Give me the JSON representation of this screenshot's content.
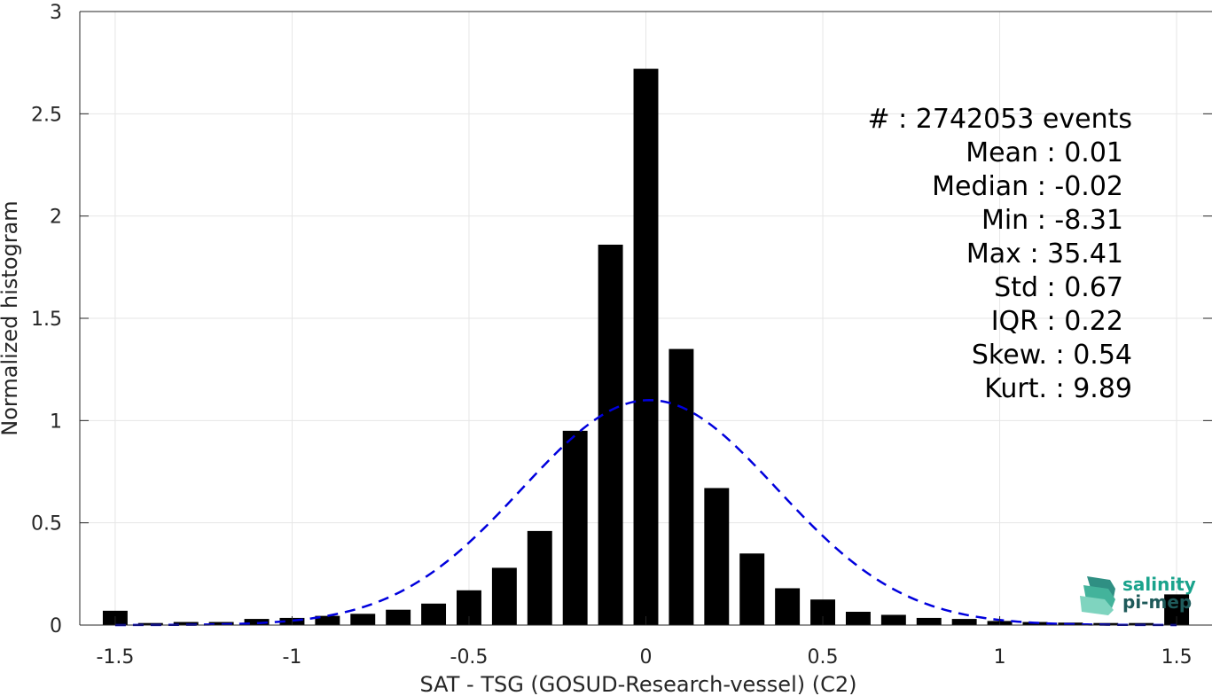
{
  "chart_data": {
    "type": "bar",
    "xlabel": "SAT - TSG (GOSUD-Research-vessel) (C2)",
    "ylabel": "Normalized histogram",
    "xlim": [
      -1.6,
      1.6
    ],
    "ylim": [
      0,
      3
    ],
    "grid": true,
    "bin_width": 0.1,
    "x_ticks": [
      -1.5,
      -1,
      -0.5,
      0,
      0.5,
      1,
      1.5
    ],
    "x_tick_labels": [
      "-1.5",
      "-1",
      "-0.5",
      "0",
      "0.5",
      "1",
      "1.5"
    ],
    "y_ticks": [
      0,
      0.5,
      1,
      1.5,
      2,
      2.5,
      3
    ],
    "y_tick_labels": [
      "0",
      "0.5",
      "1",
      "1.5",
      "2",
      "2.5",
      "3"
    ],
    "bins": [
      -1.5,
      -1.4,
      -1.3,
      -1.2,
      -1.1,
      -1.0,
      -0.9,
      -0.8,
      -0.7,
      -0.6,
      -0.5,
      -0.4,
      -0.3,
      -0.2,
      -0.1,
      0.0,
      0.1,
      0.2,
      0.3,
      0.4,
      0.5,
      0.6,
      0.7,
      0.8,
      0.9,
      1.0,
      1.1,
      1.2,
      1.3,
      1.4,
      1.5
    ],
    "values": [
      0.07,
      0.01,
      0.015,
      0.015,
      0.03,
      0.035,
      0.045,
      0.055,
      0.075,
      0.105,
      0.17,
      0.28,
      0.46,
      0.95,
      1.86,
      2.72,
      1.35,
      0.67,
      0.35,
      0.18,
      0.125,
      0.065,
      0.05,
      0.035,
      0.03,
      0.02,
      0.015,
      0.012,
      0.01,
      0.01,
      0.15
    ],
    "bar_color": "#000000",
    "fit_curve": {
      "style": "dashed",
      "color": "#0000dd",
      "mean": 0.01,
      "std": 0.36,
      "peak": 1.1
    },
    "stats": {
      "events_label": "#  : 2742053 events",
      "lines": [
        "Mean : 0.01",
        "Median : -0.02",
        "Min : -8.31",
        "Max : 35.41",
        "Std : 0.67",
        "IQR : 0.22",
        "Skew. : 0.54",
        "Kurt. : 9.89"
      ]
    }
  },
  "logo": {
    "line1": "salinity",
    "line2": "pi-mep",
    "color_teal": "#1aa38c",
    "color_dark": "#1e5a5a"
  }
}
